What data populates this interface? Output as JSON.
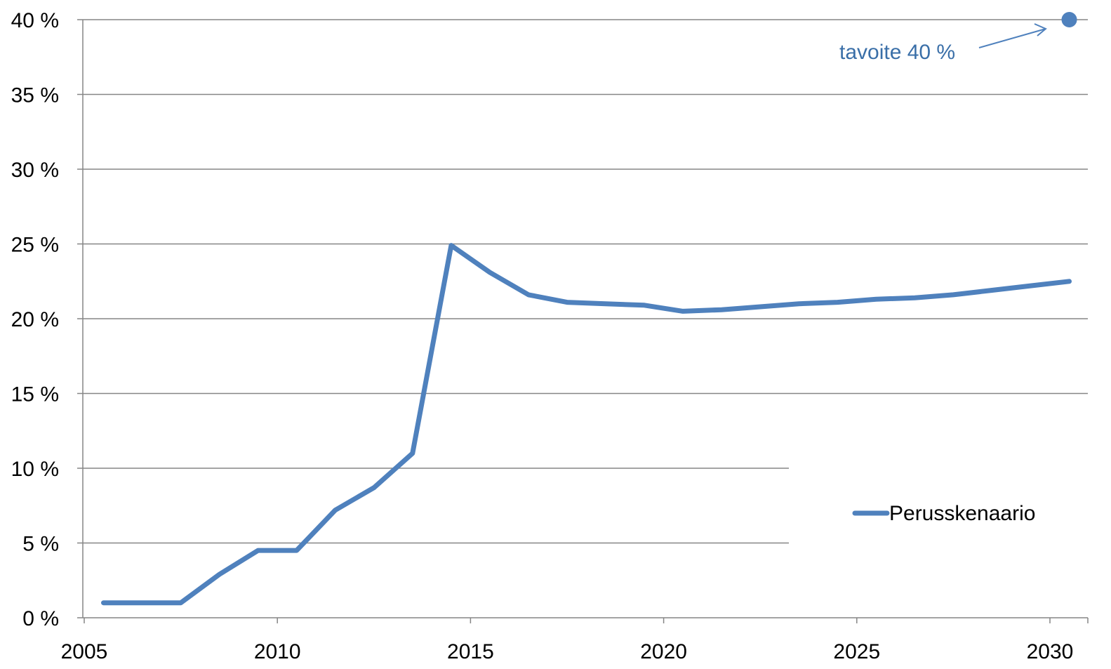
{
  "chart_data": {
    "type": "line",
    "title": "",
    "xlabel": "",
    "ylabel": "",
    "xlim": [
      2005,
      2030
    ],
    "ylim": [
      0,
      40
    ],
    "x_ticks": [
      2005,
      2010,
      2015,
      2020,
      2025,
      2030
    ],
    "x_tick_labels": [
      "2005",
      "2010",
      "2015",
      "2020",
      "2025",
      "2030"
    ],
    "y_ticks": [
      0,
      5,
      10,
      15,
      20,
      25,
      30,
      35,
      40
    ],
    "y_tick_labels": [
      "0 %",
      "5 %",
      "10 %",
      "15 %",
      "20 %",
      "25 %",
      "30 %",
      "35 %",
      "40 %"
    ],
    "grid": true,
    "legend_position": "right",
    "series": [
      {
        "name": "Perusskenaario",
        "color": "#4F81BD",
        "x": [
          2005,
          2006,
          2007,
          2008,
          2009,
          2010,
          2011,
          2012,
          2013,
          2014,
          2015,
          2016,
          2017,
          2018,
          2019,
          2020,
          2021,
          2022,
          2023,
          2024,
          2025,
          2026,
          2027,
          2028,
          2029,
          2030
        ],
        "values": [
          1.0,
          1.0,
          1.0,
          2.9,
          4.5,
          4.5,
          7.2,
          8.7,
          11.0,
          24.9,
          23.1,
          21.6,
          21.1,
          21.0,
          20.9,
          20.5,
          20.6,
          20.8,
          21.0,
          21.1,
          21.3,
          21.4,
          21.6,
          21.9,
          22.2,
          22.5
        ]
      }
    ],
    "target_point": {
      "x": 2030,
      "value": 40,
      "label": "tavoite 40 %",
      "color": "#4F81BD",
      "label_color": "#3A6FA8"
    },
    "colors": {
      "grid": "#868686",
      "axis": "#868686",
      "text": "#000000"
    }
  }
}
